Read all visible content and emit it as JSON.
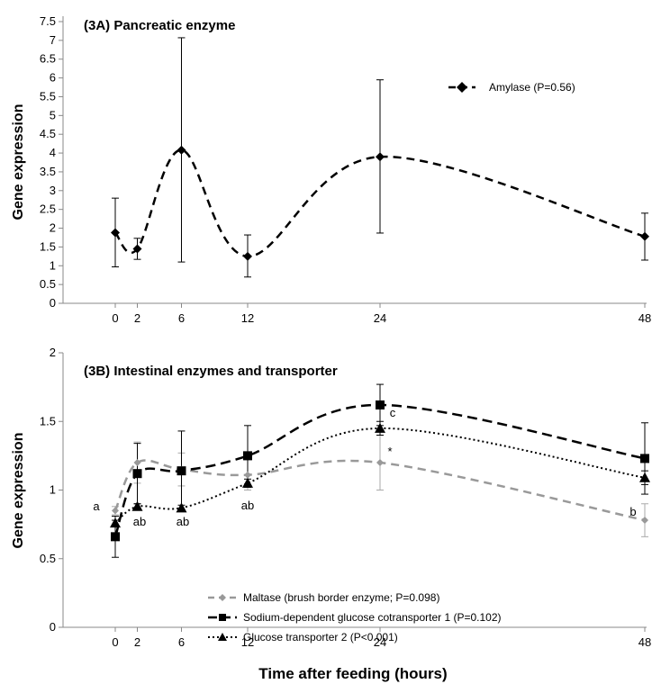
{
  "figure": {
    "xlabel": "Time after feeding (hours)"
  },
  "chart_data": [
    {
      "type": "line",
      "title": "(3A) Pancreatic enzyme",
      "ylabel": "Gene expression",
      "xlabel": "",
      "x": [
        0,
        2,
        6,
        12,
        24,
        48
      ],
      "x_ticks": [
        "0",
        "2",
        "6",
        "12",
        "24",
        "48"
      ],
      "ylim": [
        0,
        7.5
      ],
      "y_ticks": [
        "0",
        "0.5",
        "1",
        "1.5",
        "2",
        "2.5",
        "3",
        "3.5",
        "4",
        "4.5",
        "5",
        "5.5",
        "6",
        "6.5",
        "7",
        "7.5"
      ],
      "legend_position": "top-right",
      "series": [
        {
          "name": "Amylase (P=0.56)",
          "values": [
            1.88,
            1.45,
            4.08,
            1.25,
            3.9,
            1.78
          ],
          "err_low": [
            0.97,
            1.17,
            1.1,
            0.7,
            1.87,
            1.15
          ],
          "err_high": [
            2.8,
            1.73,
            7.07,
            1.82,
            5.95,
            2.4
          ],
          "marker": "diamond",
          "dash": "dashed",
          "color": "#000000"
        }
      ]
    },
    {
      "type": "line",
      "title": "(3B) Intestinal enzymes and transporter",
      "ylabel": "Gene expression",
      "xlabel": "Time after feeding (hours)",
      "x": [
        0,
        2,
        6,
        12,
        24,
        48
      ],
      "x_ticks": [
        "0",
        "2",
        "6",
        "12",
        "24",
        "48"
      ],
      "ylim": [
        0,
        2
      ],
      "y_ticks": [
        "0",
        "0.5",
        "1",
        "1.5",
        "2"
      ],
      "legend_position": "bottom-center",
      "series": [
        {
          "name": "Maltase (brush border enzyme; P=0.098)",
          "values": [
            0.85,
            1.2,
            1.15,
            1.11,
            1.2,
            0.78
          ],
          "err_low": [
            0.82,
            1.05,
            1.03,
            1.0,
            1.0,
            0.66
          ],
          "err_high": [
            0.88,
            1.35,
            1.27,
            1.22,
            1.4,
            0.9
          ],
          "marker": "diamond",
          "dash": "dashed",
          "color": "#999999"
        },
        {
          "name": "Sodium-dependent glucose cotransporter 1 (P=0.102)",
          "values": [
            0.66,
            1.12,
            1.14,
            1.25,
            1.62,
            1.23
          ],
          "err_low": [
            0.51,
            0.9,
            0.85,
            1.03,
            1.47,
            0.97
          ],
          "err_high": [
            0.81,
            1.34,
            1.43,
            1.47,
            1.77,
            1.49
          ],
          "marker": "square",
          "dash": "dashed-long",
          "color": "#000000"
        },
        {
          "name": "Glucose transporter 2 (P<0.001)",
          "values": [
            0.76,
            0.88,
            0.87,
            1.05,
            1.45,
            1.09
          ],
          "err_low": [
            0.74,
            0.86,
            0.85,
            1.02,
            1.4,
            1.04
          ],
          "err_high": [
            0.78,
            0.9,
            0.89,
            1.08,
            1.5,
            1.14
          ],
          "marker": "triangle",
          "dash": "dotted",
          "color": "#000000"
        }
      ],
      "annotations": [
        {
          "x": 0,
          "text": "a"
        },
        {
          "x": 2,
          "text": "ab"
        },
        {
          "x": 6,
          "text": "ab"
        },
        {
          "x": 12,
          "text": "ab"
        },
        {
          "x": 24,
          "text": "c"
        },
        {
          "x": 24,
          "text": "*"
        },
        {
          "x": 48,
          "text": "b"
        }
      ]
    }
  ]
}
